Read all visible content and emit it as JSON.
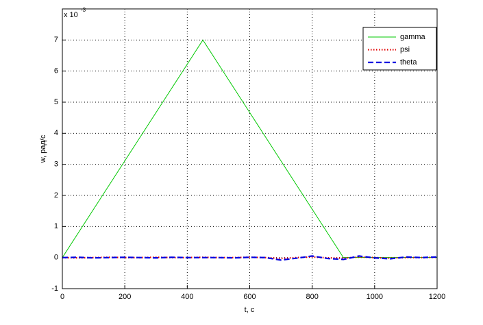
{
  "chart_data": {
    "type": "line",
    "xlabel": "t, с",
    "ylabel": "w, рад/с",
    "y_multiplier": {
      "base": "x 10",
      "exponent": "-3"
    },
    "x": [
      0,
      50,
      100,
      150,
      200,
      250,
      300,
      350,
      400,
      450,
      500,
      550,
      600,
      650,
      700,
      750,
      800,
      850,
      900,
      950,
      1000,
      1050,
      1100,
      1150,
      1200
    ],
    "series": [
      {
        "name": "gamma",
        "color": "#00c800",
        "line_style": "solid",
        "values": [
          0,
          0.778,
          1.556,
          2.333,
          3.111,
          3.889,
          4.667,
          5.444,
          6.222,
          7,
          6.222,
          5.444,
          4.667,
          3.889,
          3.111,
          2.333,
          1.556,
          0.778,
          0,
          0,
          0,
          0,
          0,
          0,
          0
        ]
      },
      {
        "name": "psi",
        "color": "#e00000",
        "line_style": "dotted",
        "values": [
          0,
          -0.01,
          0,
          0.01,
          0,
          0,
          0.01,
          0,
          0,
          0.01,
          0,
          0,
          0.01,
          0,
          -0.03,
          0,
          0.02,
          -0.01,
          -0.02,
          0.02,
          0,
          -0.02,
          0,
          0,
          0.01
        ]
      },
      {
        "name": "theta",
        "color": "#0000e0",
        "line_style": "dashed",
        "values": [
          0,
          0.01,
          -0.01,
          0,
          0.01,
          0,
          -0.01,
          0.01,
          0,
          0,
          0,
          -0.01,
          0.01,
          0,
          -0.08,
          -0.02,
          0.05,
          -0.03,
          -0.06,
          0.05,
          -0.01,
          -0.04,
          0.02,
          0,
          0.02
        ]
      }
    ],
    "xlim": [
      0,
      1200
    ],
    "xticks": [
      0,
      200,
      400,
      600,
      800,
      1000,
      1200
    ],
    "ylim": [
      -1,
      8
    ],
    "yticks": [
      -1,
      0,
      1,
      2,
      3,
      4,
      5,
      6,
      7
    ],
    "grid": true,
    "legend_position": "northeast"
  }
}
